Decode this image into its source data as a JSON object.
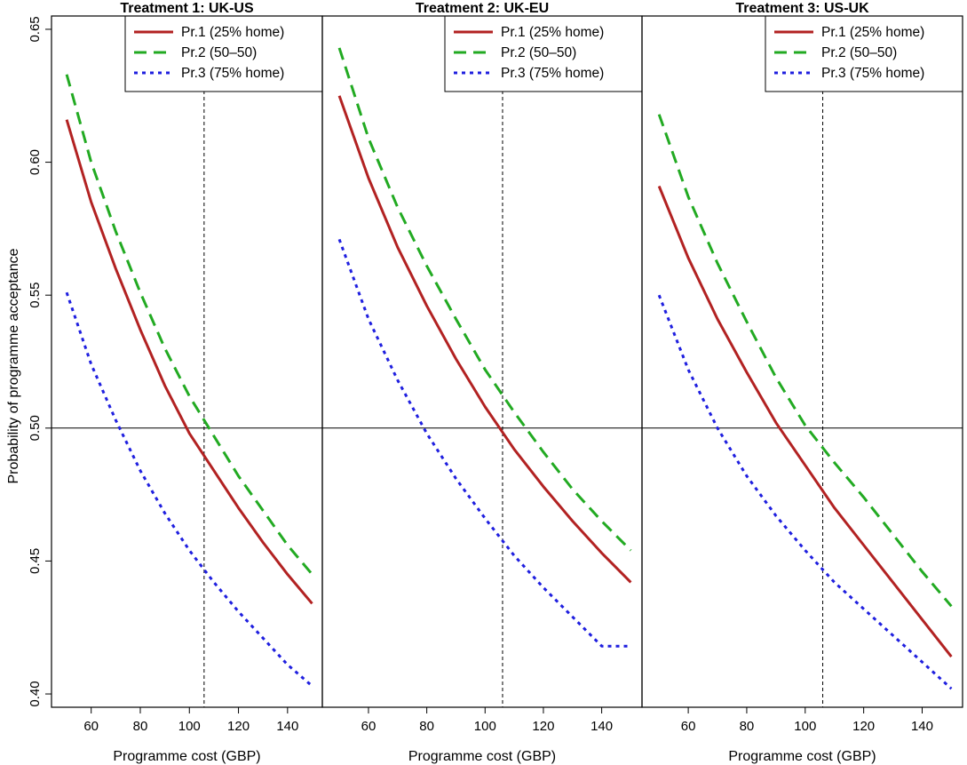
{
  "chart_data": {
    "type": "line",
    "ylabel": "Probability of programme acceptance",
    "ylim": [
      0.395,
      0.655
    ],
    "yticks": [
      "0.40",
      "0.45",
      "0.50",
      "0.55",
      "0.60",
      "0.65"
    ],
    "xticks": [
      "60",
      "80",
      "100",
      "120",
      "140"
    ],
    "xlim": [
      46,
      152
    ],
    "hline_y": 0.5,
    "vline_x": 106,
    "legend_position": "top-right",
    "series_styles": [
      {
        "color": "#b22222",
        "dash": "solid"
      },
      {
        "color": "#22aa22",
        "dash": "dashed"
      },
      {
        "color": "#1f1fdf",
        "dash": "dotted"
      }
    ],
    "panels": [
      {
        "title": "Treatment 1: UK-US",
        "xlabel": "Programme cost (GBP)",
        "x": [
          50,
          60,
          70,
          80,
          90,
          100,
          110,
          120,
          130,
          140,
          150
        ],
        "series": [
          {
            "name": "Pr.1 (25% home)",
            "values": [
              0.616,
              0.585,
              0.56,
              0.537,
              0.516,
              0.498,
              0.484,
              0.47,
              0.457,
              0.445,
              0.434
            ]
          },
          {
            "name": "Pr.2 (50–50)",
            "values": [
              0.633,
              0.6,
              0.574,
              0.551,
              0.53,
              0.512,
              0.497,
              0.482,
              0.469,
              0.456,
              0.445
            ]
          },
          {
            "name": "Pr.3 (75% home)",
            "values": [
              0.551,
              0.524,
              0.503,
              0.484,
              0.468,
              0.454,
              0.442,
              0.431,
              0.421,
              0.411,
              0.403
            ]
          }
        ]
      },
      {
        "title": "Treatment 2: UK-EU",
        "xlabel": "Programme cost (GBP)",
        "x": [
          50,
          60,
          70,
          80,
          90,
          100,
          110,
          120,
          130,
          140,
          150
        ],
        "series": [
          {
            "name": "Pr.1 (25% home)",
            "values": [
              0.625,
              0.594,
              0.568,
              0.546,
              0.526,
              0.508,
              0.492,
              0.478,
              0.465,
              0.453,
              0.442
            ]
          },
          {
            "name": "Pr.2 (50–50)",
            "values": [
              0.643,
              0.609,
              0.583,
              0.561,
              0.541,
              0.522,
              0.506,
              0.491,
              0.477,
              0.465,
              0.454
            ]
          },
          {
            "name": "Pr.3 (75% home)",
            "values": [
              0.571,
              0.541,
              0.518,
              0.498,
              0.481,
              0.466,
              0.452,
              0.44,
              0.429,
              0.418,
              0.418
            ]
          }
        ]
      },
      {
        "title": "Treatment 3: US-UK",
        "xlabel": "Programme cost (GBP)",
        "x": [
          50,
          60,
          70,
          80,
          90,
          100,
          110,
          120,
          130,
          140,
          150
        ],
        "series": [
          {
            "name": "Pr.1 (25% home)",
            "values": [
              0.591,
              0.564,
              0.541,
              0.521,
              0.502,
              0.486,
              0.47,
              0.456,
              0.442,
              0.428,
              0.414
            ]
          },
          {
            "name": "Pr.2 (50–50)",
            "values": [
              0.618,
              0.587,
              0.562,
              0.54,
              0.519,
              0.501,
              0.487,
              0.474,
              0.46,
              0.446,
              0.433
            ]
          },
          {
            "name": "Pr.3 (75% home)",
            "values": [
              0.55,
              0.522,
              0.5,
              0.482,
              0.467,
              0.454,
              0.442,
              0.432,
              0.422,
              0.412,
              0.402
            ]
          }
        ]
      }
    ]
  }
}
